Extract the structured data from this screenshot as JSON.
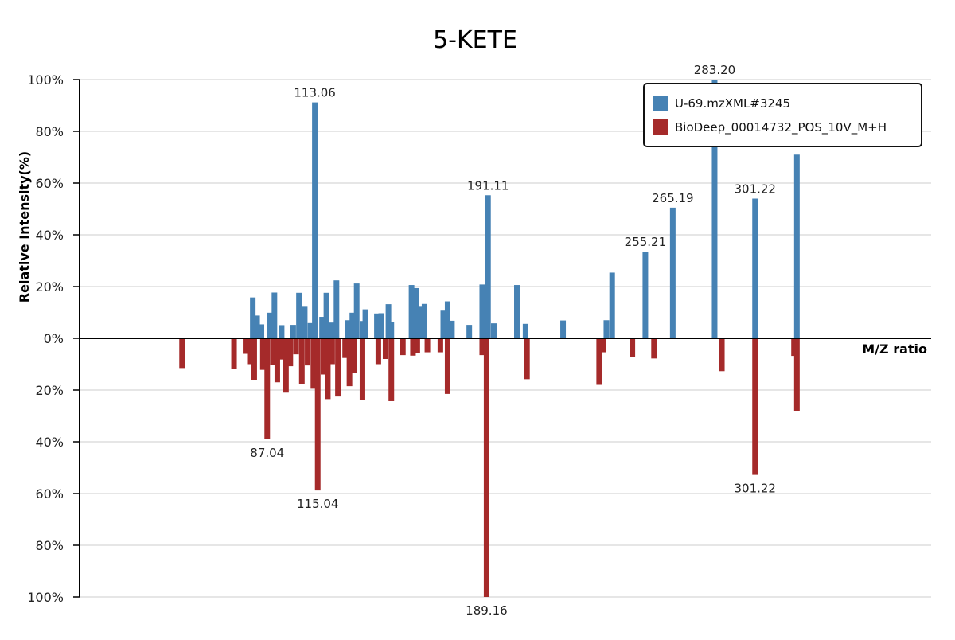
{
  "chart_data": {
    "type": "bar",
    "title": "5-KETE",
    "xlabel": "M/Z ratio",
    "ylabel": "Relative Intensity(%)",
    "x_range": [
      45,
      340
    ],
    "ylim": [
      -100,
      100
    ],
    "y_ticks": [
      {
        "value": 100,
        "label": "100%"
      },
      {
        "value": 80,
        "label": "80%"
      },
      {
        "value": 60,
        "label": "60%"
      },
      {
        "value": 40,
        "label": "40%"
      },
      {
        "value": 20,
        "label": "20%"
      },
      {
        "value": 0,
        "label": "0%"
      },
      {
        "value": -20,
        "label": "20%"
      },
      {
        "value": -40,
        "label": "40%"
      },
      {
        "value": -60,
        "label": "60%"
      },
      {
        "value": -80,
        "label": "80%"
      },
      {
        "value": -100,
        "label": "100%"
      }
    ],
    "grid": true,
    "legend_position": "top-right",
    "colors": {
      "sample": "#4682B4",
      "reference": "#A52A2A"
    },
    "series": [
      {
        "name": "U-69.mzXML#3245",
        "color": "#4682B4",
        "direction": "up",
        "points": [
          {
            "mz": 105.0,
            "value": 15.8
          },
          {
            "mz": 106.5,
            "value": 8.8
          },
          {
            "mz": 108.0,
            "value": 5.4
          },
          {
            "mz": 111.0,
            "value": 9.9
          },
          {
            "mz": 112.5,
            "value": 17.7
          },
          {
            "mz": 115.0,
            "value": 5.1
          },
          {
            "mz": 119.0,
            "value": 5.2
          },
          {
            "mz": 121.0,
            "value": 17.6
          },
          {
            "mz": 123.0,
            "value": 12.2
          },
          {
            "mz": 125.0,
            "value": 5.9
          },
          {
            "mz": 126.5,
            "value": 91.2,
            "label": "113.06"
          },
          {
            "mz": 129.0,
            "value": 8.3
          },
          {
            "mz": 130.5,
            "value": 17.6
          },
          {
            "mz": 132.5,
            "value": 6.1
          },
          {
            "mz": 134.0,
            "value": 22.4
          },
          {
            "mz": 138.0,
            "value": 7.0
          },
          {
            "mz": 139.5,
            "value": 9.9
          },
          {
            "mz": 141.0,
            "value": 21.2
          },
          {
            "mz": 143.0,
            "value": 6.7
          },
          {
            "mz": 144.0,
            "value": 11.2
          },
          {
            "mz": 148.0,
            "value": 9.6
          },
          {
            "mz": 149.5,
            "value": 9.7
          },
          {
            "mz": 152.0,
            "value": 13.2
          },
          {
            "mz": 153.0,
            "value": 6.2
          },
          {
            "mz": 160.0,
            "value": 20.6
          },
          {
            "mz": 161.5,
            "value": 19.4
          },
          {
            "mz": 163.0,
            "value": 12.2
          },
          {
            "mz": 164.5,
            "value": 13.3
          },
          {
            "mz": 171.0,
            "value": 10.7
          },
          {
            "mz": 172.5,
            "value": 14.3
          },
          {
            "mz": 174.0,
            "value": 6.8
          },
          {
            "mz": 180.0,
            "value": 5.2
          },
          {
            "mz": 184.5,
            "value": 20.8
          },
          {
            "mz": 186.5,
            "value": 55.3,
            "label": "191.11"
          },
          {
            "mz": 188.5,
            "value": 5.8
          },
          {
            "mz": 196.5,
            "value": 20.6
          },
          {
            "mz": 199.5,
            "value": 5.6
          },
          {
            "mz": 212.5,
            "value": 6.9
          },
          {
            "mz": 227.5,
            "value": 7.0
          },
          {
            "mz": 229.5,
            "value": 25.4
          },
          {
            "mz": 241.0,
            "value": 33.5,
            "label": "255.21"
          },
          {
            "mz": 250.5,
            "value": 50.5,
            "label": "265.19"
          },
          {
            "mz": 265.0,
            "value": 100.0,
            "label": "283.20"
          },
          {
            "mz": 279.0,
            "value": 54.0,
            "label": "301.22"
          },
          {
            "mz": 293.5,
            "value": 71.0
          }
        ]
      },
      {
        "name": "BioDeep_00014732_POS_10V_M+H",
        "color": "#A52A2A",
        "direction": "down",
        "points": [
          {
            "mz": 80.5,
            "value": 11.5
          },
          {
            "mz": 98.5,
            "value": 11.8
          },
          {
            "mz": 102.5,
            "value": 6.0
          },
          {
            "mz": 104.0,
            "value": 10.0
          },
          {
            "mz": 105.5,
            "value": 16.0
          },
          {
            "mz": 108.5,
            "value": 12.2
          },
          {
            "mz": 110.0,
            "value": 39.0,
            "label": "87.04"
          },
          {
            "mz": 112.0,
            "value": 10.3
          },
          {
            "mz": 113.5,
            "value": 17.0
          },
          {
            "mz": 115.0,
            "value": 8.2
          },
          {
            "mz": 116.5,
            "value": 21.0
          },
          {
            "mz": 118.0,
            "value": 10.8
          },
          {
            "mz": 120.0,
            "value": 6.2
          },
          {
            "mz": 122.0,
            "value": 17.8
          },
          {
            "mz": 124.0,
            "value": 10.5
          },
          {
            "mz": 126.0,
            "value": 19.5
          },
          {
            "mz": 127.5,
            "value": 58.8,
            "label": "115.04"
          },
          {
            "mz": 129.5,
            "value": 14.0
          },
          {
            "mz": 131.0,
            "value": 23.5
          },
          {
            "mz": 132.5,
            "value": 10.0
          },
          {
            "mz": 134.5,
            "value": 22.5
          },
          {
            "mz": 137.0,
            "value": 7.6
          },
          {
            "mz": 138.5,
            "value": 18.5
          },
          {
            "mz": 140.0,
            "value": 13.3
          },
          {
            "mz": 143.0,
            "value": 24.0
          },
          {
            "mz": 148.5,
            "value": 10.0
          },
          {
            "mz": 151.0,
            "value": 8.0
          },
          {
            "mz": 153.0,
            "value": 24.3
          },
          {
            "mz": 157.0,
            "value": 6.5
          },
          {
            "mz": 160.5,
            "value": 6.7
          },
          {
            "mz": 162.0,
            "value": 5.8
          },
          {
            "mz": 165.5,
            "value": 5.4
          },
          {
            "mz": 170.0,
            "value": 5.4
          },
          {
            "mz": 172.5,
            "value": 21.5
          },
          {
            "mz": 184.5,
            "value": 6.5
          },
          {
            "mz": 186.0,
            "value": 100.0,
            "label": "189.16"
          },
          {
            "mz": 200.0,
            "value": 15.8
          },
          {
            "mz": 225.0,
            "value": 18.0
          },
          {
            "mz": 226.5,
            "value": 5.4
          },
          {
            "mz": 236.5,
            "value": 7.3
          },
          {
            "mz": 244.0,
            "value": 7.8
          },
          {
            "mz": 267.5,
            "value": 12.7
          },
          {
            "mz": 279.0,
            "value": 52.8,
            "label": "301.22"
          },
          {
            "mz": 292.5,
            "value": 6.8
          },
          {
            "mz": 293.5,
            "value": 28.0
          }
        ]
      }
    ]
  }
}
